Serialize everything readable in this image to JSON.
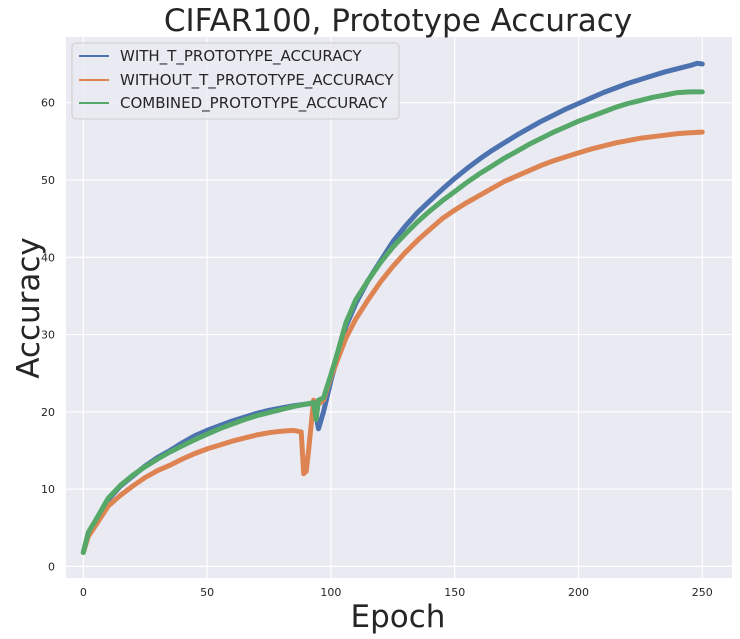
{
  "chart_data": {
    "type": "line",
    "title": "CIFAR100, Prototype Accuracy",
    "xlabel": "Epoch",
    "ylabel": "Accuracy",
    "xlim": [
      -7,
      262
    ],
    "ylim": [
      -1.5,
      68.5
    ],
    "xticks": [
      0,
      50,
      100,
      150,
      200,
      250
    ],
    "yticks": [
      0,
      10,
      20,
      30,
      40,
      50,
      60
    ],
    "grid": true,
    "legend_position": "top-left",
    "colors": {
      "background": "#eaeaf2",
      "grid": "#ffffff",
      "text": "#262626"
    },
    "series": [
      {
        "name": "WITH_T_PROTOTYPE_ACCURACY",
        "color": "#4c72b0",
        "points": [
          [
            0,
            1.8
          ],
          [
            2,
            4.2
          ],
          [
            5,
            5.8
          ],
          [
            10,
            8.6
          ],
          [
            15,
            10.4
          ],
          [
            20,
            11.7
          ],
          [
            25,
            13.0
          ],
          [
            30,
            14.1
          ],
          [
            35,
            15.0
          ],
          [
            40,
            16.0
          ],
          [
            45,
            16.9
          ],
          [
            50,
            17.6
          ],
          [
            55,
            18.2
          ],
          [
            60,
            18.8
          ],
          [
            65,
            19.3
          ],
          [
            70,
            19.8
          ],
          [
            75,
            20.2
          ],
          [
            80,
            20.5
          ],
          [
            85,
            20.8
          ],
          [
            90,
            21.0
          ],
          [
            93,
            21.1
          ],
          [
            95,
            17.8
          ],
          [
            97,
            20.0
          ],
          [
            100,
            24.0
          ],
          [
            103,
            27.5
          ],
          [
            106,
            31.0
          ],
          [
            110,
            34.0
          ],
          [
            115,
            37.0
          ],
          [
            120,
            39.5
          ],
          [
            125,
            42.0
          ],
          [
            130,
            44.0
          ],
          [
            135,
            45.8
          ],
          [
            140,
            47.3
          ],
          [
            145,
            48.8
          ],
          [
            150,
            50.2
          ],
          [
            155,
            51.5
          ],
          [
            160,
            52.7
          ],
          [
            165,
            53.8
          ],
          [
            170,
            54.8
          ],
          [
            175,
            55.8
          ],
          [
            180,
            56.7
          ],
          [
            185,
            57.6
          ],
          [
            190,
            58.4
          ],
          [
            195,
            59.2
          ],
          [
            200,
            59.9
          ],
          [
            205,
            60.6
          ],
          [
            210,
            61.3
          ],
          [
            215,
            61.9
          ],
          [
            220,
            62.5
          ],
          [
            225,
            63.0
          ],
          [
            230,
            63.5
          ],
          [
            235,
            64.0
          ],
          [
            240,
            64.4
          ],
          [
            245,
            64.8
          ],
          [
            248,
            65.1
          ],
          [
            250,
            65.0
          ]
        ]
      },
      {
        "name": "WITHOUT_T_PROTOTYPE_ACCURACY",
        "color": "#dd8452",
        "points": [
          [
            0,
            1.8
          ],
          [
            2,
            3.9
          ],
          [
            5,
            5.3
          ],
          [
            10,
            7.8
          ],
          [
            15,
            9.2
          ],
          [
            20,
            10.4
          ],
          [
            25,
            11.5
          ],
          [
            30,
            12.4
          ],
          [
            35,
            13.1
          ],
          [
            40,
            13.9
          ],
          [
            45,
            14.6
          ],
          [
            50,
            15.2
          ],
          [
            55,
            15.7
          ],
          [
            60,
            16.2
          ],
          [
            65,
            16.6
          ],
          [
            70,
            17.0
          ],
          [
            75,
            17.3
          ],
          [
            80,
            17.5
          ],
          [
            85,
            17.6
          ],
          [
            88,
            17.4
          ],
          [
            89,
            12.0
          ],
          [
            90,
            12.3
          ],
          [
            91,
            15.0
          ],
          [
            93,
            21.5
          ],
          [
            95,
            21.0
          ],
          [
            97,
            21.5
          ],
          [
            100,
            24.5
          ],
          [
            103,
            27.0
          ],
          [
            106,
            29.5
          ],
          [
            110,
            32.0
          ],
          [
            115,
            34.5
          ],
          [
            120,
            36.8
          ],
          [
            125,
            38.8
          ],
          [
            130,
            40.6
          ],
          [
            135,
            42.2
          ],
          [
            140,
            43.6
          ],
          [
            145,
            45.0
          ],
          [
            150,
            46.1
          ],
          [
            155,
            47.1
          ],
          [
            160,
            48.0
          ],
          [
            165,
            48.9
          ],
          [
            170,
            49.8
          ],
          [
            175,
            50.5
          ],
          [
            180,
            51.2
          ],
          [
            185,
            51.9
          ],
          [
            190,
            52.5
          ],
          [
            195,
            53.0
          ],
          [
            200,
            53.5
          ],
          [
            205,
            54.0
          ],
          [
            210,
            54.4
          ],
          [
            215,
            54.8
          ],
          [
            220,
            55.1
          ],
          [
            225,
            55.4
          ],
          [
            230,
            55.6
          ],
          [
            235,
            55.8
          ],
          [
            240,
            56.0
          ],
          [
            245,
            56.1
          ],
          [
            250,
            56.2
          ]
        ]
      },
      {
        "name": "COMBINED_PROTOTYPE_ACCURACY",
        "color": "#55a868",
        "points": [
          [
            0,
            1.8
          ],
          [
            2,
            4.4
          ],
          [
            5,
            6.0
          ],
          [
            10,
            8.8
          ],
          [
            15,
            10.5
          ],
          [
            20,
            11.8
          ],
          [
            25,
            12.9
          ],
          [
            30,
            13.9
          ],
          [
            35,
            14.8
          ],
          [
            40,
            15.6
          ],
          [
            45,
            16.4
          ],
          [
            50,
            17.1
          ],
          [
            55,
            17.8
          ],
          [
            60,
            18.4
          ],
          [
            65,
            19.0
          ],
          [
            70,
            19.5
          ],
          [
            75,
            19.9
          ],
          [
            80,
            20.3
          ],
          [
            85,
            20.7
          ],
          [
            90,
            21.0
          ],
          [
            93,
            21.2
          ],
          [
            94,
            19.0
          ],
          [
            95,
            21.5
          ],
          [
            97,
            21.8
          ],
          [
            100,
            24.8
          ],
          [
            103,
            28.0
          ],
          [
            106,
            31.5
          ],
          [
            110,
            34.5
          ],
          [
            115,
            37.0
          ],
          [
            120,
            39.3
          ],
          [
            125,
            41.3
          ],
          [
            130,
            43.0
          ],
          [
            135,
            44.6
          ],
          [
            140,
            46.0
          ],
          [
            145,
            47.3
          ],
          [
            150,
            48.5
          ],
          [
            155,
            49.7
          ],
          [
            160,
            50.8
          ],
          [
            165,
            51.8
          ],
          [
            170,
            52.8
          ],
          [
            175,
            53.7
          ],
          [
            180,
            54.6
          ],
          [
            185,
            55.4
          ],
          [
            190,
            56.2
          ],
          [
            195,
            56.9
          ],
          [
            200,
            57.6
          ],
          [
            205,
            58.2
          ],
          [
            210,
            58.8
          ],
          [
            215,
            59.4
          ],
          [
            220,
            59.9
          ],
          [
            225,
            60.3
          ],
          [
            230,
            60.7
          ],
          [
            235,
            61.0
          ],
          [
            240,
            61.3
          ],
          [
            245,
            61.4
          ],
          [
            250,
            61.4
          ]
        ]
      }
    ]
  }
}
